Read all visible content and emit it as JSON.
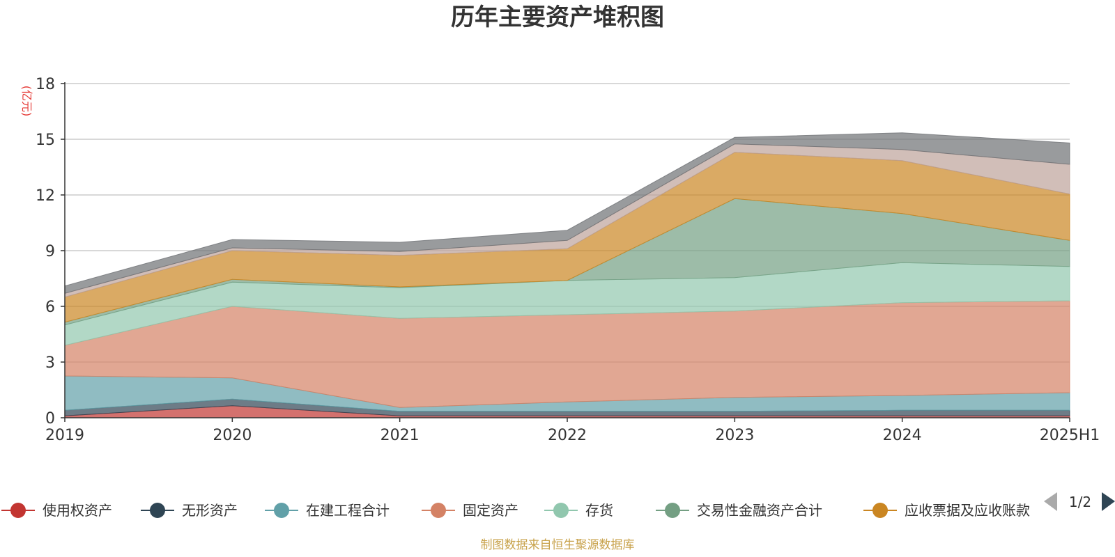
{
  "chart_data": {
    "type": "area",
    "stacked": true,
    "title": "历年主要资产堆积图",
    "unit": "(亿元)",
    "categories": [
      "2019",
      "2020",
      "2021",
      "2022",
      "2023",
      "2024",
      "2025H1"
    ],
    "ylim": [
      0,
      18
    ],
    "yticks": [
      0,
      3,
      6,
      9,
      12,
      15,
      18
    ],
    "grid": true,
    "legend_position": "bottom",
    "series": [
      {
        "name": "使用权资产",
        "color": "#c23531",
        "values": [
          0.1,
          0.65,
          0.1,
          0.1,
          0.1,
          0.1,
          0.1
        ]
      },
      {
        "name": "无形资产",
        "color": "#2f4554",
        "values": [
          0.3,
          0.35,
          0.25,
          0.25,
          0.25,
          0.3,
          0.3
        ]
      },
      {
        "name": "在建工程合计",
        "color": "#61a0a8",
        "values": [
          1.85,
          1.15,
          0.2,
          0.5,
          0.75,
          0.8,
          0.95
        ]
      },
      {
        "name": "固定资产",
        "color": "#d48265",
        "values": [
          1.65,
          3.85,
          4.8,
          4.7,
          4.65,
          5.0,
          4.95
        ]
      },
      {
        "name": "存货",
        "color": "#91c7ae",
        "values": [
          1.1,
          1.3,
          1.65,
          1.85,
          1.8,
          2.15,
          1.85
        ]
      },
      {
        "name": "交易性金融资产合计",
        "color": "#749f83",
        "values": [
          0.15,
          0.15,
          0.05,
          0.0,
          4.25,
          2.65,
          1.4
        ]
      },
      {
        "name": "应收票据及应收账款",
        "color": "#ca8622",
        "values": [
          1.35,
          1.55,
          1.7,
          1.7,
          2.5,
          2.85,
          2.5
        ]
      },
      {
        "name": "",
        "color": "#bda29a",
        "values": [
          0.2,
          0.15,
          0.2,
          0.45,
          0.45,
          0.6,
          1.6
        ]
      },
      {
        "name": "",
        "color": "#6e7074",
        "values": [
          0.4,
          0.45,
          0.5,
          0.55,
          0.35,
          0.9,
          1.15
        ]
      }
    ],
    "legend_page": "1/2",
    "source": "制图数据来自恒生聚源数据库"
  }
}
